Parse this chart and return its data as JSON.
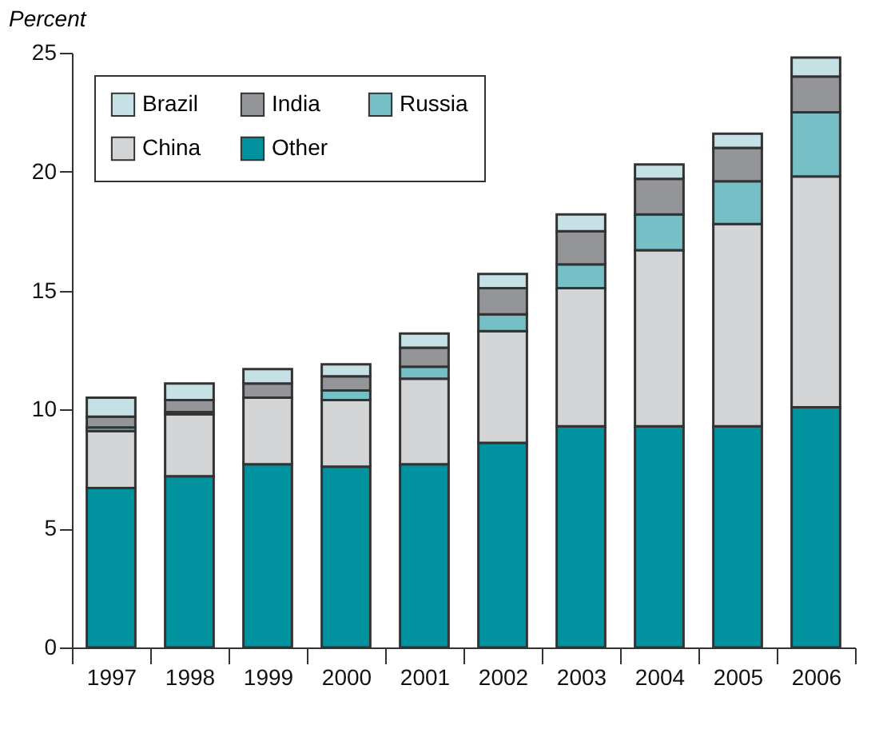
{
  "chart_data": {
    "type": "bar",
    "stacked": true,
    "ylabel": "Percent",
    "categories": [
      "1997",
      "1998",
      "1999",
      "2000",
      "2001",
      "2002",
      "2003",
      "2004",
      "2005",
      "2006"
    ],
    "series": [
      {
        "name": "Other",
        "color": "#00929f",
        "values": [
          6.7,
          7.2,
          7.7,
          7.6,
          7.7,
          8.6,
          9.3,
          9.3,
          9.3,
          10.1
        ]
      },
      {
        "name": "China",
        "color": "#d3d4d6",
        "values": [
          2.4,
          2.6,
          2.8,
          2.8,
          3.6,
          4.7,
          5.8,
          7.4,
          8.5,
          9.7
        ]
      },
      {
        "name": "Russia",
        "color": "#77bfc6",
        "values": [
          0.15,
          0.1,
          null,
          0.4,
          0.5,
          0.7,
          1.0,
          1.5,
          1.8,
          2.7
        ]
      },
      {
        "name": "India",
        "color": "#939598",
        "values": [
          0.45,
          0.5,
          0.6,
          0.6,
          0.8,
          1.1,
          1.4,
          1.5,
          1.4,
          1.5
        ]
      },
      {
        "name": "Brazil",
        "color": "#c5e1e6",
        "values": [
          0.8,
          0.7,
          0.6,
          0.5,
          0.6,
          0.6,
          0.7,
          0.6,
          0.6,
          0.8
        ]
      }
    ],
    "ylim": [
      0,
      25
    ],
    "yticks": [
      0,
      5,
      10,
      15,
      20,
      25
    ],
    "grid": false,
    "legend": "top left"
  }
}
